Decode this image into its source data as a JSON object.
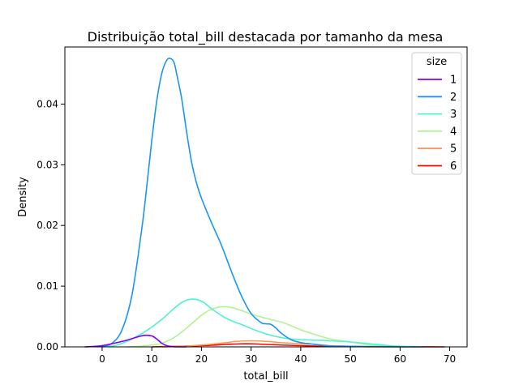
{
  "chart_data": {
    "type": "line",
    "title": "Distribuição total_bill destacada por tamanho da mesa",
    "xlabel": "total_bill",
    "ylabel": "Density",
    "xlim": [
      -7.5,
      73.5
    ],
    "ylim": [
      0,
      0.0494
    ],
    "xticks": [
      "0",
      "10",
      "20",
      "30",
      "40",
      "50",
      "60",
      "70"
    ],
    "yticks": [
      "0.00",
      "0.01",
      "0.02",
      "0.03",
      "0.04"
    ],
    "grid": false,
    "legend": {
      "title": "size",
      "placement": "top-right"
    },
    "series": [
      {
        "name": "1",
        "color": "#8000ff",
        "x": [
          -3.5,
          0,
          3,
          5,
          7,
          8.5,
          10,
          11,
          12,
          13,
          14,
          15,
          17
        ],
        "y": [
          0,
          0.0002,
          0.0007,
          0.0011,
          0.0016,
          0.0019,
          0.0018,
          0.0013,
          0.0006,
          0.0002,
          5e-05,
          0,
          0
        ]
      },
      {
        "name": "2",
        "color": "#1996f3",
        "x": [
          0,
          2,
          4,
          6,
          8,
          9,
          10,
          11,
          12,
          13,
          13.8,
          14.5,
          15,
          16,
          17,
          18,
          19,
          20,
          22,
          24,
          26,
          28,
          30,
          32,
          33,
          34,
          35,
          36,
          38,
          40,
          42,
          44,
          46,
          50,
          55,
          60,
          65
        ],
        "y": [
          0.0001,
          0.0006,
          0.0028,
          0.0085,
          0.0195,
          0.0265,
          0.034,
          0.0405,
          0.045,
          0.0472,
          0.0475,
          0.0468,
          0.045,
          0.041,
          0.0355,
          0.0305,
          0.027,
          0.0245,
          0.0205,
          0.0168,
          0.0125,
          0.0085,
          0.0055,
          0.004,
          0.0038,
          0.0037,
          0.0031,
          0.0023,
          0.0012,
          0.0007,
          0.0005,
          0.0003,
          0.00015,
          0.0001,
          5e-05,
          0,
          0
        ]
      },
      {
        "name": "3",
        "color": "#4df3ce",
        "x": [
          0,
          3,
          6,
          9,
          12,
          14,
          16,
          17.5,
          19,
          20.5,
          22,
          25,
          28,
          31,
          34,
          37,
          40,
          43,
          46,
          50,
          54,
          58,
          62,
          64.5
        ],
        "y": [
          0,
          0.0003,
          0.0013,
          0.0027,
          0.0045,
          0.006,
          0.0073,
          0.0078,
          0.0078,
          0.0073,
          0.0063,
          0.0047,
          0.0037,
          0.0027,
          0.0019,
          0.0014,
          0.0012,
          0.0011,
          0.001,
          0.0008,
          0.0005,
          0.0002,
          5e-05,
          0
        ]
      },
      {
        "name": "4",
        "color": "#b2f396",
        "x": [
          5,
          9,
          12,
          15,
          18,
          20,
          22,
          24,
          26,
          28,
          30,
          33,
          36,
          38,
          40,
          43,
          46,
          50,
          54,
          58,
          62
        ],
        "y": [
          0,
          0.0002,
          0.0006,
          0.0018,
          0.0038,
          0.0052,
          0.0062,
          0.0066,
          0.0065,
          0.006,
          0.0054,
          0.0047,
          0.0041,
          0.0035,
          0.0028,
          0.002,
          0.0013,
          0.0008,
          0.0003,
          0.0001,
          0
        ]
      },
      {
        "name": "5",
        "color": "#ff964f",
        "x": [
          12,
          16,
          20,
          24,
          27,
          30,
          33,
          36,
          38,
          40,
          43,
          46,
          50,
          54
        ],
        "y": [
          0,
          0.0001,
          0.0003,
          0.0006,
          0.0009,
          0.001,
          0.0009,
          0.0007,
          0.0006,
          0.0005,
          0.0004,
          0.0002,
          0.0001,
          0
        ]
      },
      {
        "name": "6",
        "color": "#ff0000",
        "x": [
          10,
          15,
          20,
          25,
          28,
          30,
          33,
          36,
          40,
          45,
          50,
          55,
          60,
          65,
          69
        ],
        "y": [
          0,
          0.0001,
          0.0002,
          0.0004,
          0.0005,
          0.0005,
          0.0004,
          0.0003,
          0.0002,
          0.0001,
          5e-05,
          3e-05,
          2e-05,
          1e-05,
          0
        ]
      }
    ]
  }
}
